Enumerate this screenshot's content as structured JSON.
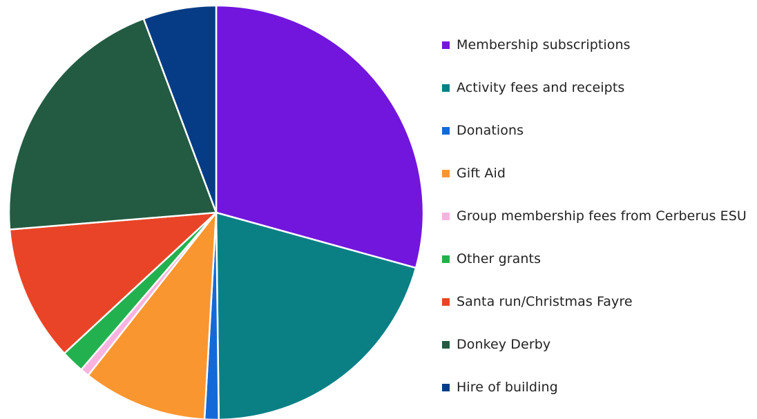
{
  "chart_data": {
    "type": "pie",
    "title": "",
    "legend_position": "right",
    "slices": [
      {
        "label": "Membership subscriptions",
        "value": 29.3,
        "color": "#7216DE"
      },
      {
        "label": "Activity fees and receipts",
        "value": 20.5,
        "color": "#0A8085"
      },
      {
        "label": "Donations",
        "value": 1.1,
        "color": "#1469D8"
      },
      {
        "label": "Gift Aid",
        "value": 9.7,
        "color": "#FA9630"
      },
      {
        "label": "Group membership fees from Cerberus ESU",
        "value": 0.7,
        "color": "#F8B3E0"
      },
      {
        "label": "Other grants",
        "value": 1.8,
        "color": "#23B14F"
      },
      {
        "label": "Santa run/Christmas Fayre",
        "value": 10.6,
        "color": "#E94427"
      },
      {
        "label": "Donkey Derby",
        "value": 20.6,
        "color": "#225B42"
      },
      {
        "label": "Hire of building",
        "value": 5.7,
        "color": "#063C85"
      }
    ]
  }
}
